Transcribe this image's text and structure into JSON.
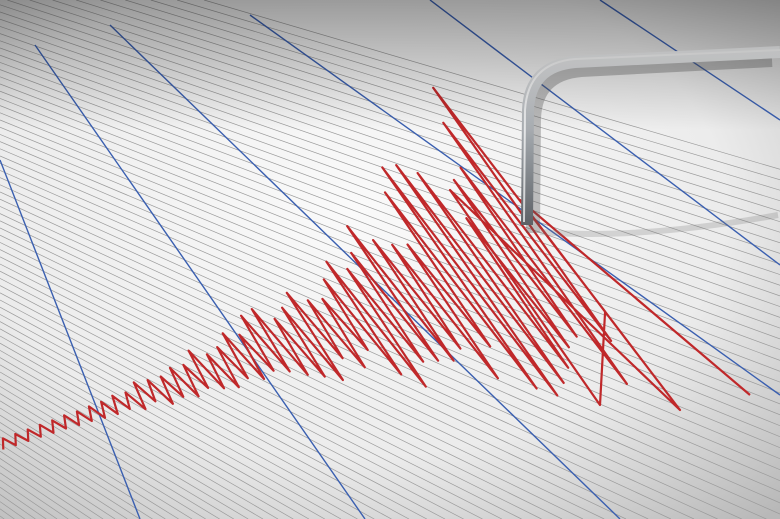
{
  "scene": {
    "subject": "seismograph",
    "colors": {
      "paper_light": "#f4f4f4",
      "paper_shadow": "#bdbdbd",
      "grid_line": "#9a9a9a",
      "major_line": "#3a5fb0",
      "trace": "#c0282a",
      "needle": "#b8bcc0"
    }
  }
}
